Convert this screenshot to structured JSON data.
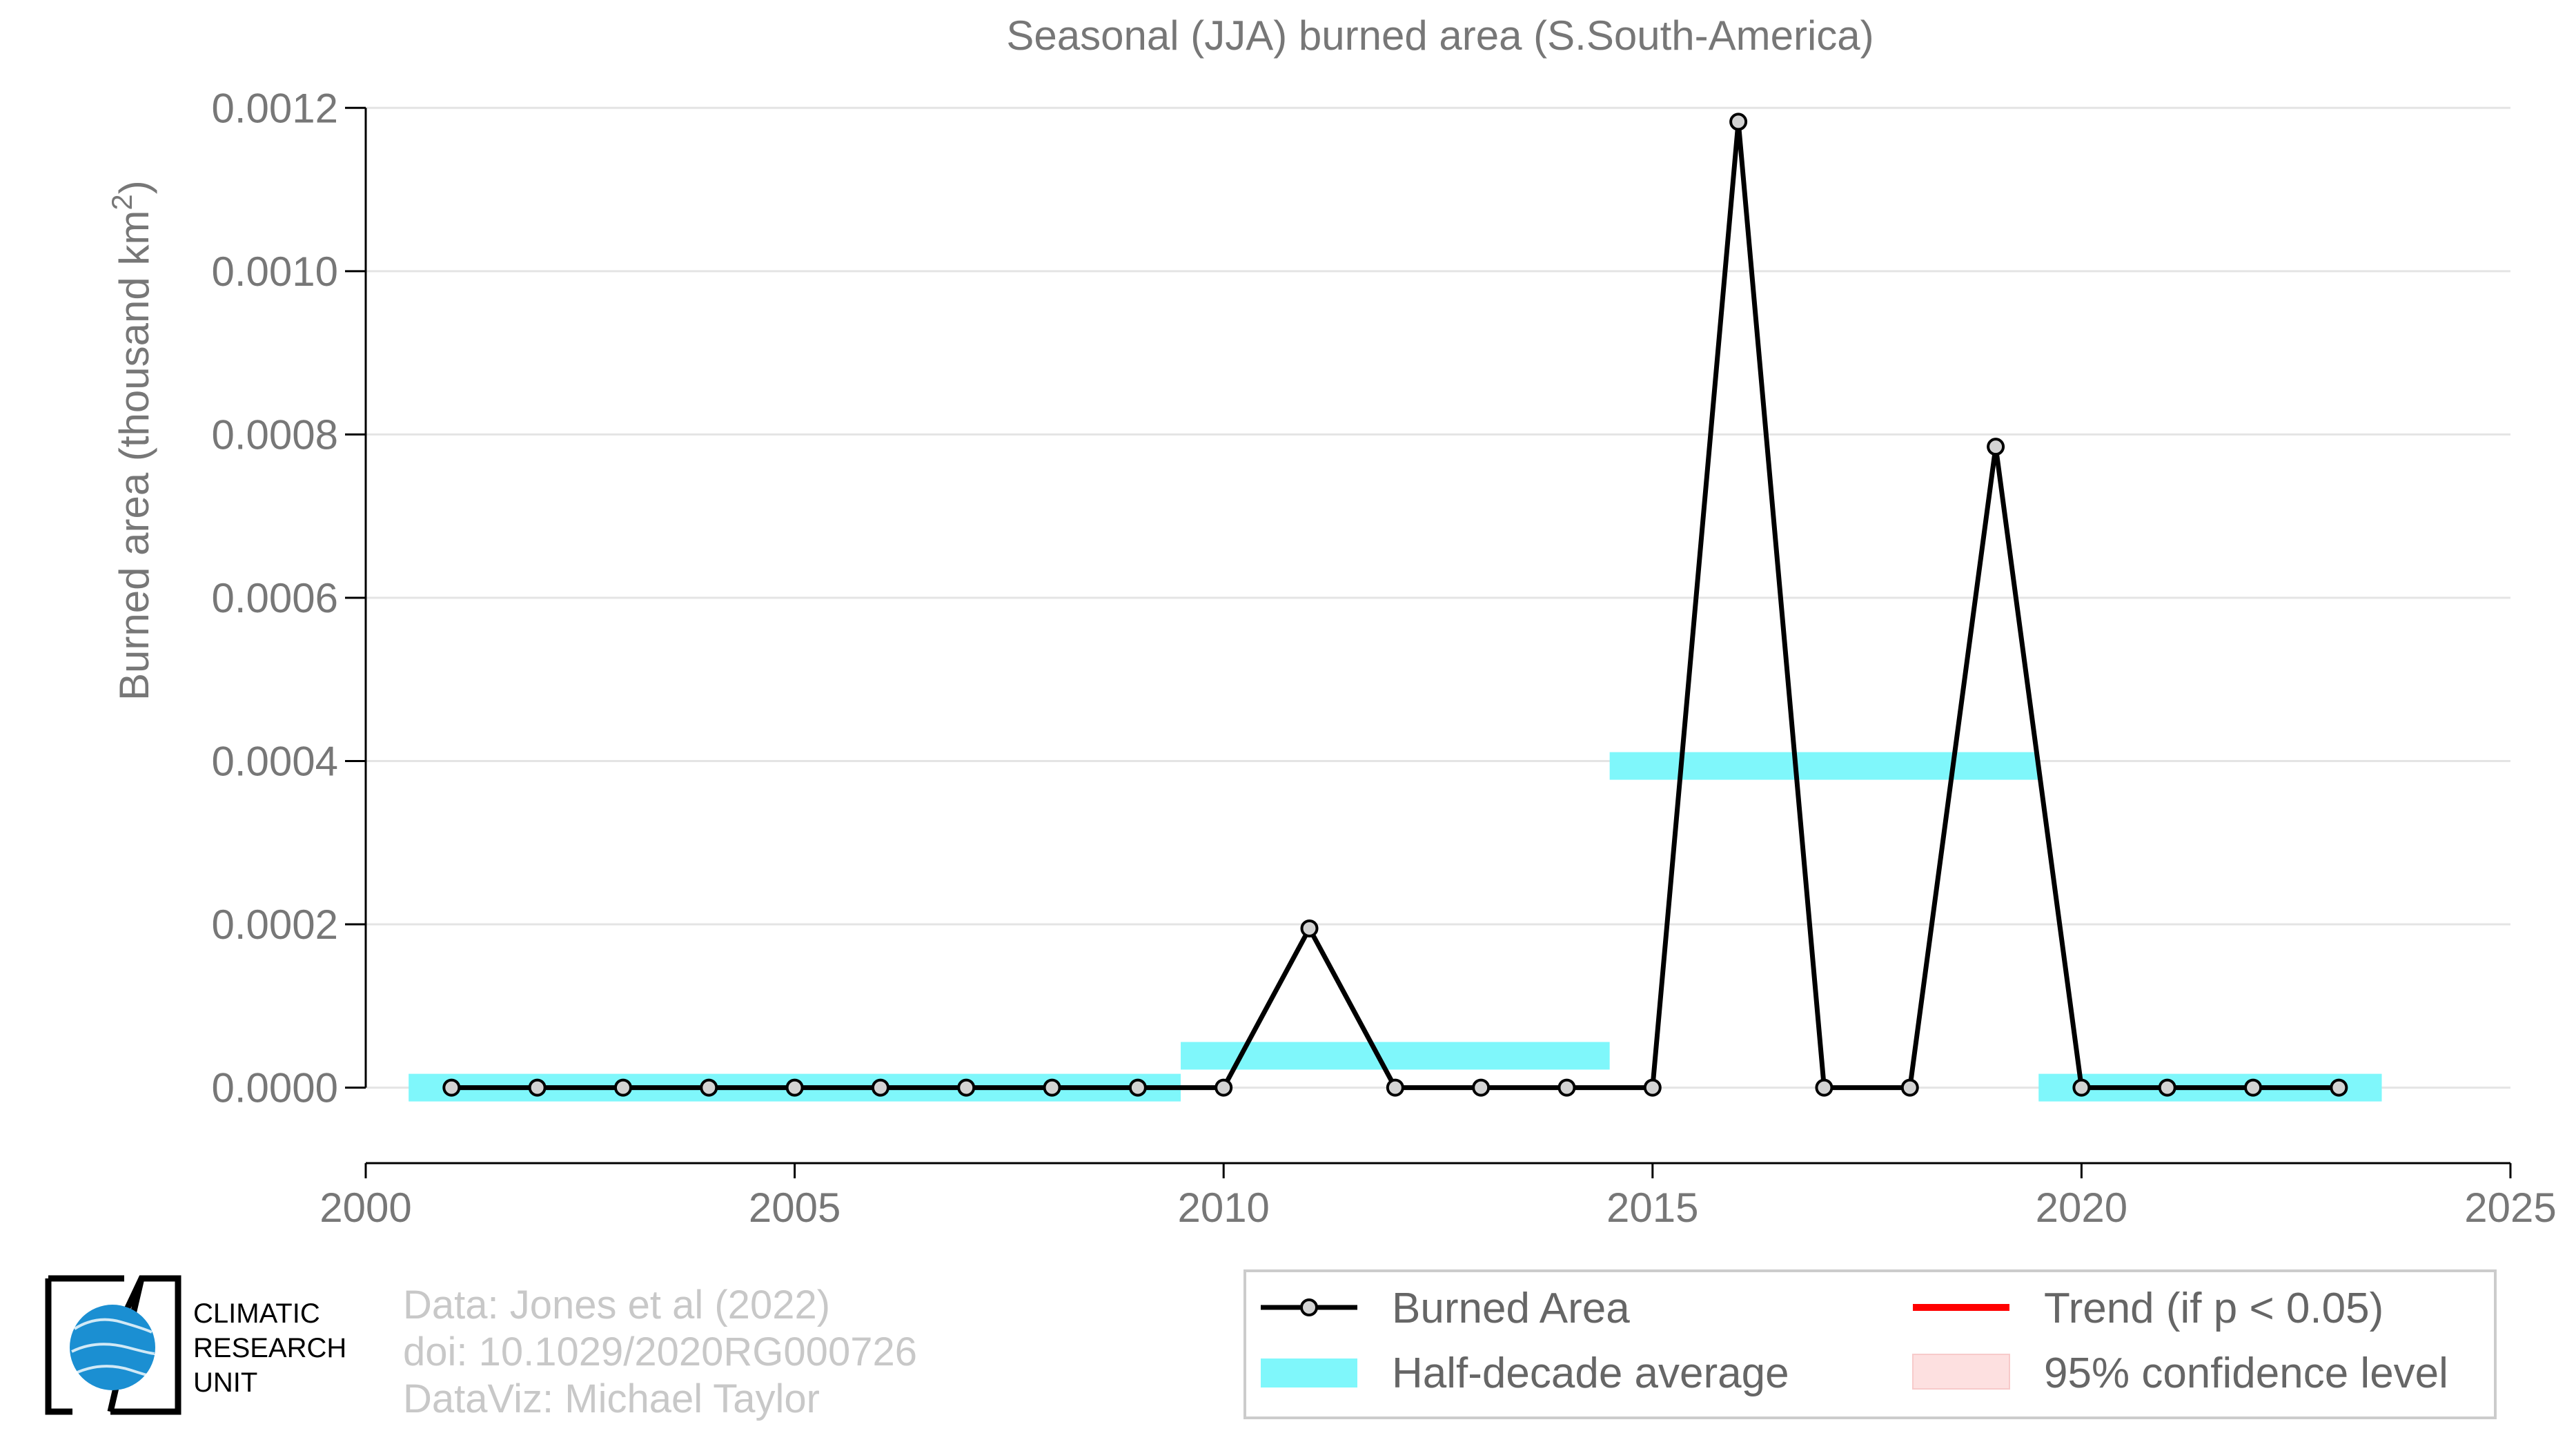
{
  "chart_data": {
    "type": "line",
    "title": "Seasonal (JJA) burned area (S.South-America)",
    "xlabel": "",
    "ylabel": "Burned area (thousand km",
    "ylabel_superscript": "2",
    "ylabel_suffix": ")",
    "xlim": [
      2000,
      2025
    ],
    "ylim": [
      -9.25e-05,
      0.001218
    ],
    "xticks": [
      2000,
      2005,
      2010,
      2015,
      2020,
      2025
    ],
    "xtick_labels": [
      "2000",
      "2005",
      "2010",
      "2015",
      "2020",
      "2025"
    ],
    "yticks": [
      0.0,
      0.0002,
      0.0004,
      0.0006,
      0.0008,
      0.001,
      0.0012
    ],
    "ytick_labels": [
      "0.0000",
      "0.0002",
      "0.0004",
      "0.0006",
      "0.0008",
      "0.0010",
      "0.0012"
    ],
    "grid": true,
    "series": [
      {
        "name": "Burned Area",
        "color": "#000000",
        "marker_fill": "#d3d3d3",
        "x": [
          2001,
          2002,
          2003,
          2004,
          2005,
          2006,
          2007,
          2008,
          2009,
          2010,
          2011,
          2012,
          2013,
          2014,
          2015,
          2016,
          2017,
          2018,
          2019,
          2020,
          2021,
          2022,
          2023
        ],
        "y": [
          0.0,
          0.0,
          0.0,
          0.0,
          0.0,
          0.0,
          0.0,
          0.0,
          0.0,
          0.0,
          0.000195,
          0.0,
          0.0,
          0.0,
          0.0,
          0.001183,
          0.0,
          0.0,
          0.000785,
          0.0,
          0.0,
          0.0,
          0.0
        ]
      }
    ],
    "half_decade_average": {
      "name": "Half-decade average",
      "color": "#7ff7fb",
      "segments": [
        {
          "x_start": 2000.5,
          "x_end": 2009.5,
          "value": 0.0
        },
        {
          "x_start": 2009.5,
          "x_end": 2014.5,
          "value": 3.9e-05
        },
        {
          "x_start": 2014.5,
          "x_end": 2019.5,
          "value": 0.000394
        },
        {
          "x_start": 2019.5,
          "x_end": 2023.5,
          "value": 0.0
        }
      ]
    },
    "legend": {
      "placement": "bottom-right",
      "entries": [
        {
          "label": "Burned Area",
          "kind": "line-marker",
          "color": "#000000"
        },
        {
          "label": "Trend (if p < 0.05)",
          "kind": "line",
          "color": "#ff0000"
        },
        {
          "label": "Half-decade average",
          "kind": "band",
          "color": "#7ff7fb"
        },
        {
          "label": "95% confidence level",
          "kind": "band",
          "color": "#fde0e0"
        }
      ]
    }
  },
  "credits": {
    "line1": "Data: Jones et al (2022)",
    "line2": "doi: 10.1029/2020RG000726",
    "line3": "DataViz: Michael Taylor"
  },
  "logo": {
    "line1": "CLIMATIC",
    "line2": "RESEARCH",
    "line3": "UNIT",
    "globe_color": "#1b8fd2"
  }
}
